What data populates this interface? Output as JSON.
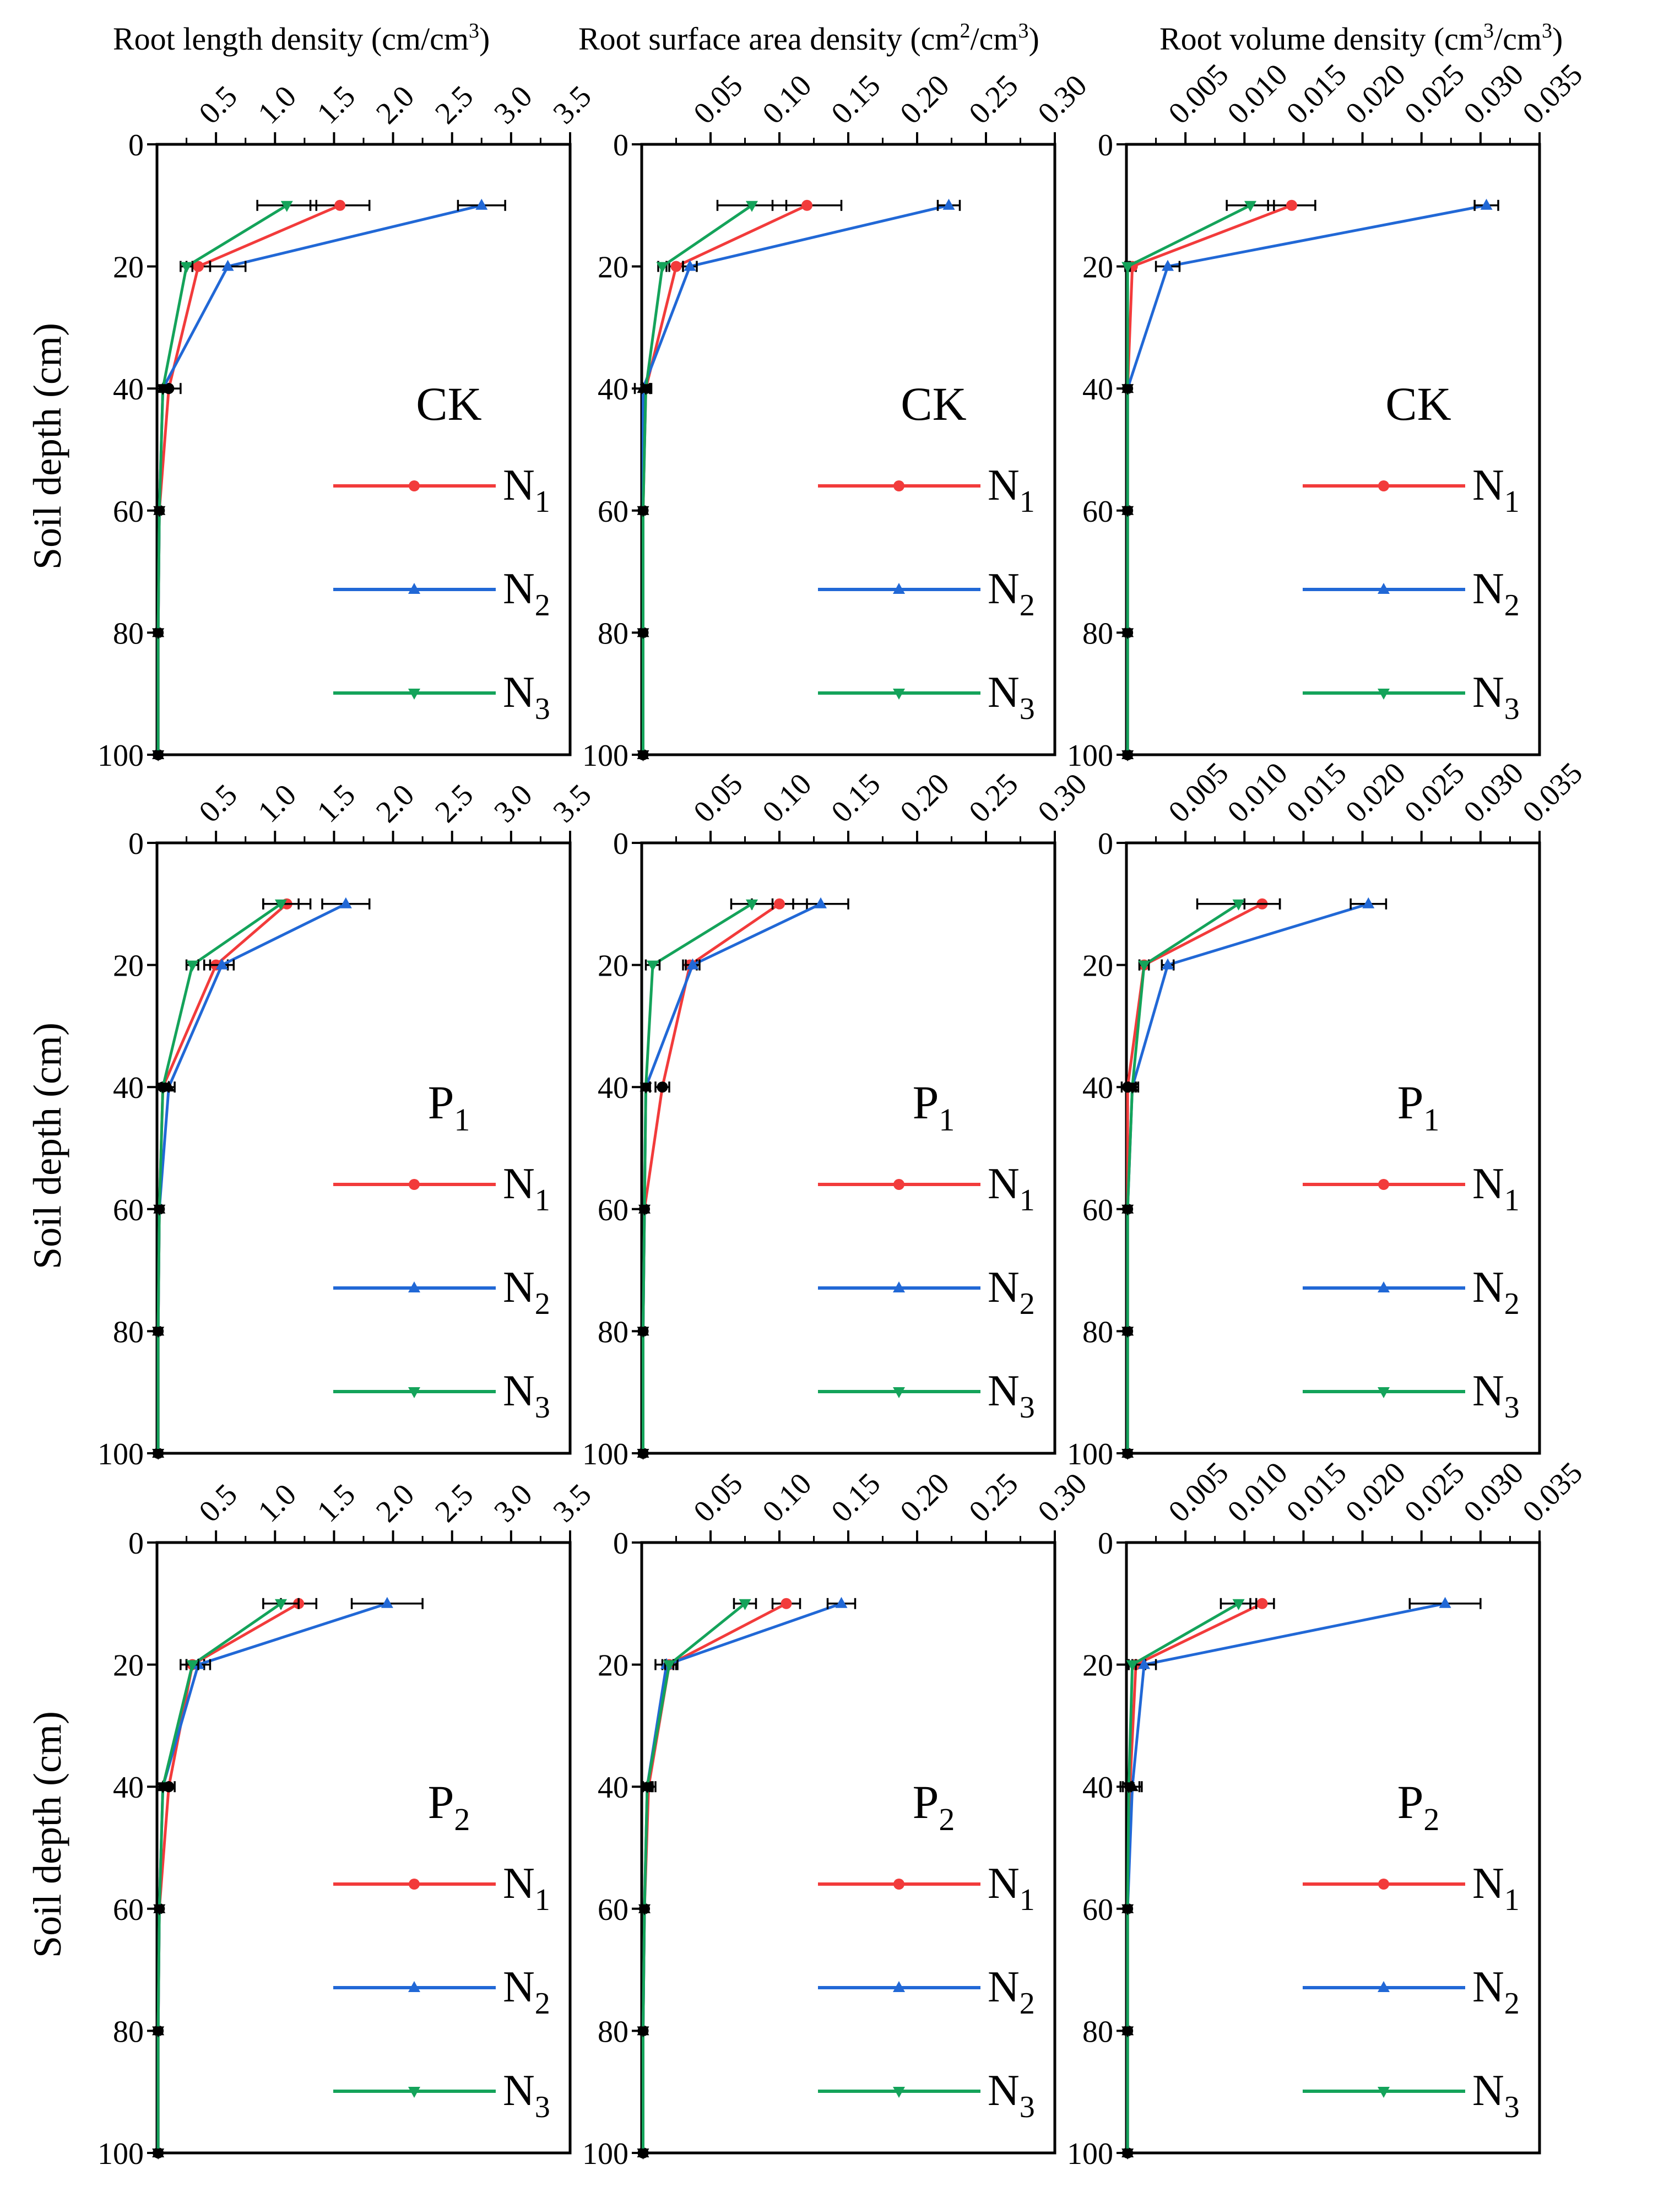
{
  "header": {
    "col1": {
      "main": "Root length density (cm/cm",
      "sup": "3",
      "end": ")"
    },
    "col2": {
      "main": "Root surface area density (cm",
      "sup": "2",
      "mid": "/cm",
      "sup2": "3",
      "end": ")"
    },
    "col3": {
      "main": "Root volume  density (cm",
      "sup": "3",
      "mid": "/cm",
      "sup2": "3",
      "end": ")"
    }
  },
  "ylabel": "Soil depth (cm)",
  "colors": {
    "N1": "#f23b3b",
    "N2": "#2168d6",
    "N3": "#14a35a",
    "axis": "#000000"
  },
  "legend": [
    {
      "key": "N1",
      "base": "N",
      "sub": "1"
    },
    {
      "key": "N2",
      "base": "N",
      "sub": "2"
    },
    {
      "key": "N3",
      "base": "N",
      "sub": "3"
    }
  ],
  "chart_data": {
    "type": "line",
    "depth_axis": {
      "label": "Soil depth (cm)",
      "range": [
        0,
        100
      ],
      "ticks": [
        "0",
        "20",
        "40",
        "60",
        "80",
        "100"
      ],
      "inverted": true
    },
    "depths": [
      10,
      20,
      40,
      60,
      80,
      100
    ],
    "columns": [
      {
        "variable": "Root length density (cm/cm3)",
        "range": [
          0,
          3.5
        ],
        "ticks": [
          "0.5",
          "1.0",
          "1.5",
          "2.0",
          "2.5",
          "3.0",
          "3.5"
        ]
      },
      {
        "variable": "Root surface area density (cm2/cm3)",
        "range": [
          0,
          0.3
        ],
        "ticks": [
          "0.05",
          "0.10",
          "0.15",
          "0.20",
          "0.25",
          "0.30"
        ]
      },
      {
        "variable": "Root volume density (cm3/cm3)",
        "range": [
          0,
          0.035
        ],
        "ticks": [
          "0.005",
          "0.010",
          "0.015",
          "0.020",
          "0.025",
          "0.030",
          "0.035"
        ]
      }
    ],
    "panels": [
      {
        "row": 0,
        "col": 0,
        "treatment": "CK",
        "treatment_sub": "",
        "series": [
          {
            "name": "N1",
            "values": [
              1.55,
              0.35,
              0.1,
              0.02,
              0.01,
              0.01
            ],
            "errors": [
              0.25,
              0.1,
              0.1,
              0,
              0,
              0
            ]
          },
          {
            "name": "N2",
            "values": [
              2.75,
              0.6,
              0.05,
              0.02,
              0.01,
              0.01
            ],
            "errors": [
              0.2,
              0.15,
              0.05,
              0,
              0,
              0
            ]
          },
          {
            "name": "N3",
            "values": [
              1.1,
              0.25,
              0.05,
              0.02,
              0.01,
              0.01
            ],
            "errors": [
              0.25,
              0.05,
              0.05,
              0,
              0,
              0
            ]
          }
        ]
      },
      {
        "row": 0,
        "col": 1,
        "treatment": "CK",
        "treatment_sub": "",
        "series": [
          {
            "name": "N1",
            "values": [
              0.12,
              0.025,
              0.003,
              0.001,
              0.001,
              0.001
            ],
            "errors": [
              0.025,
              0.005,
              0.003,
              0,
              0,
              0
            ]
          },
          {
            "name": "N2",
            "values": [
              0.223,
              0.035,
              0.001,
              0.001,
              0.001,
              0.001
            ],
            "errors": [
              0.008,
              0.005,
              0.006,
              0,
              0,
              0
            ]
          },
          {
            "name": "N3",
            "values": [
              0.08,
              0.015,
              0.003,
              0.001,
              0.001,
              0.001
            ],
            "errors": [
              0.025,
              0.003,
              0.003,
              0,
              0,
              0
            ]
          }
        ]
      },
      {
        "row": 0,
        "col": 2,
        "treatment": "CK",
        "treatment_sub": "",
        "series": [
          {
            "name": "N1",
            "values": [
              0.014,
              0.0005,
              0.0001,
              0.0001,
              0.0001,
              0.0001
            ],
            "errors": [
              0.002,
              0.0003,
              0,
              0,
              0,
              0
            ]
          },
          {
            "name": "N2",
            "values": [
              0.0305,
              0.0035,
              0.0001,
              0.0001,
              0.0001,
              0.0001
            ],
            "errors": [
              0.001,
              0.001,
              0,
              0,
              0,
              0
            ]
          },
          {
            "name": "N3",
            "values": [
              0.0105,
              0.0001,
              0.0001,
              0.0001,
              0.0001,
              0.0001
            ],
            "errors": [
              0.002,
              0.0002,
              0,
              0,
              0,
              0
            ]
          }
        ]
      },
      {
        "row": 1,
        "col": 0,
        "treatment": "P",
        "treatment_sub": "1",
        "series": [
          {
            "name": "N1",
            "values": [
              1.1,
              0.5,
              0.05,
              0.02,
              0.01,
              0.01
            ],
            "errors": [
              0.2,
              0.1,
              0.05,
              0,
              0,
              0
            ]
          },
          {
            "name": "N2",
            "values": [
              1.6,
              0.55,
              0.1,
              0.02,
              0.01,
              0.01
            ],
            "errors": [
              0.2,
              0.1,
              0.05,
              0,
              0,
              0
            ]
          },
          {
            "name": "N3",
            "values": [
              1.05,
              0.3,
              0.05,
              0.02,
              0.01,
              0.01
            ],
            "errors": [
              0.15,
              0.05,
              0.05,
              0,
              0,
              0
            ]
          }
        ]
      },
      {
        "row": 1,
        "col": 1,
        "treatment": "P",
        "treatment_sub": "1",
        "series": [
          {
            "name": "N1",
            "values": [
              0.1,
              0.035,
              0.015,
              0.002,
              0.001,
              0.001
            ],
            "errors": [
              0.02,
              0.005,
              0.005,
              0,
              0,
              0
            ]
          },
          {
            "name": "N2",
            "values": [
              0.13,
              0.037,
              0.003,
              0.002,
              0.001,
              0.001
            ],
            "errors": [
              0.02,
              0.005,
              0.003,
              0,
              0,
              0
            ]
          },
          {
            "name": "N3",
            "values": [
              0.08,
              0.008,
              0.003,
              0.002,
              0.001,
              0.001
            ],
            "errors": [
              0.015,
              0.005,
              0.003,
              0,
              0,
              0
            ]
          }
        ]
      },
      {
        "row": 1,
        "col": 2,
        "treatment": "P",
        "treatment_sub": "1",
        "series": [
          {
            "name": "N1",
            "values": [
              0.0115,
              0.0015,
              0.0001,
              0.0001,
              0.0001,
              0.0001
            ],
            "errors": [
              0.0015,
              0.0004,
              0.0005,
              0,
              0,
              0
            ]
          },
          {
            "name": "N2",
            "values": [
              0.0205,
              0.0035,
              0.0005,
              0.0001,
              0.0001,
              0.0001
            ],
            "errors": [
              0.0015,
              0.0005,
              0.0005,
              0,
              0,
              0
            ]
          },
          {
            "name": "N3",
            "values": [
              0.0095,
              0.0015,
              0.0005,
              0.0001,
              0.0001,
              0.0001
            ],
            "errors": [
              0.0035,
              0.0004,
              0.0003,
              0,
              0,
              0
            ]
          }
        ]
      },
      {
        "row": 2,
        "col": 0,
        "treatment": "P",
        "treatment_sub": "2",
        "series": [
          {
            "name": "N1",
            "values": [
              1.2,
              0.3,
              0.1,
              0.02,
              0.01,
              0.01
            ],
            "errors": [
              0.15,
              0.1,
              0.05,
              0,
              0,
              0
            ]
          },
          {
            "name": "N2",
            "values": [
              1.95,
              0.35,
              0.05,
              0.02,
              0.01,
              0.01
            ],
            "errors": [
              0.3,
              0.1,
              0.05,
              0,
              0,
              0
            ]
          },
          {
            "name": "N3",
            "values": [
              1.05,
              0.3,
              0.05,
              0.02,
              0.01,
              0.01
            ],
            "errors": [
              0.15,
              0.05,
              0.05,
              0,
              0,
              0
            ]
          }
        ]
      },
      {
        "row": 2,
        "col": 1,
        "treatment": "P",
        "treatment_sub": "2",
        "series": [
          {
            "name": "N1",
            "values": [
              0.105,
              0.02,
              0.005,
              0.002,
              0.001,
              0.001
            ],
            "errors": [
              0.01,
              0.005,
              0.005,
              0,
              0,
              0
            ]
          },
          {
            "name": "N2",
            "values": [
              0.145,
              0.018,
              0.004,
              0.002,
              0.001,
              0.001
            ],
            "errors": [
              0.01,
              0.008,
              0.004,
              0,
              0,
              0
            ]
          },
          {
            "name": "N3",
            "values": [
              0.075,
              0.02,
              0.004,
              0.002,
              0.001,
              0.001
            ],
            "errors": [
              0.008,
              0.003,
              0.003,
              0,
              0,
              0
            ]
          }
        ]
      },
      {
        "row": 2,
        "col": 2,
        "treatment": "P",
        "treatment_sub": "2",
        "series": [
          {
            "name": "N1",
            "values": [
              0.0115,
              0.0008,
              0.0003,
              0.0001,
              0.0001,
              0.0001
            ],
            "errors": [
              0.001,
              0.0008,
              0.0008,
              0,
              0,
              0
            ]
          },
          {
            "name": "N2",
            "values": [
              0.027,
              0.0015,
              0.0005,
              0.0001,
              0.0001,
              0.0001
            ],
            "errors": [
              0.003,
              0.001,
              0.0008,
              0,
              0,
              0
            ]
          },
          {
            "name": "N3",
            "values": [
              0.0095,
              0.0005,
              0.0002,
              0.0001,
              0.0001,
              0.0001
            ],
            "errors": [
              0.0015,
              0.0003,
              0.0002,
              0,
              0,
              0
            ]
          }
        ]
      }
    ]
  }
}
